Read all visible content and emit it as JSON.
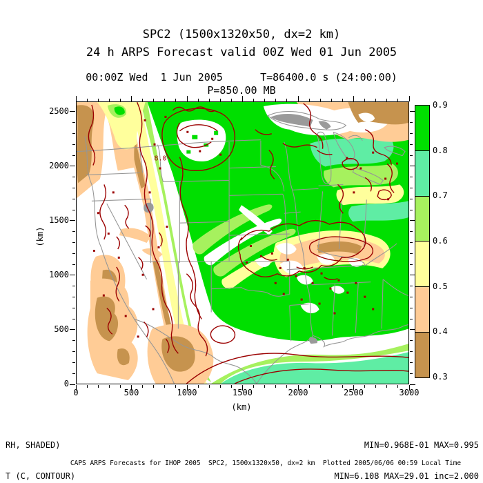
{
  "header": {
    "title1": "SPC2 (1500x1320x50, dx=2 km)",
    "title2": "24 h ARPS Forecast valid 00Z Wed 01 Jun 2005",
    "subtitle": "00:00Z Wed  1 Jun 2005      T=86400.0 s (24:00:00)",
    "pressure": "P=850.00 MB"
  },
  "axes": {
    "x": {
      "label": "(km)",
      "majors": [
        0,
        500,
        1000,
        1500,
        2000,
        2500,
        3000
      ],
      "major_step": 500,
      "minor_step": 100,
      "max": 3000
    },
    "y": {
      "label": "(km)",
      "majors": [
        0,
        500,
        1000,
        1500,
        2000,
        2500
      ],
      "major_step": 500,
      "minor_step": 100,
      "max": 2594
    }
  },
  "colorbar": {
    "labels": [
      "0.9",
      "0.8",
      "0.7",
      "0.6",
      "0.5",
      "0.4",
      "0.3"
    ],
    "colors": [
      "#00DF00",
      "#5FEDA4",
      "#A6F15E",
      "#FFFF9C",
      "#FFCC96",
      "#C6934E"
    ]
  },
  "annotations": {
    "shaded_field": "RH, SHADED)",
    "contour_field": "T (C, CONTOUR)",
    "shaded_stats": "MIN=0.968E-01 MAX=0.995",
    "contour_stats": "MIN=6.108 MAX=29.01 inc=2.000"
  },
  "footer": {
    "caption": "CAPS ARPS Forecasts for IHOP 2005  SPC2, 1500x1320x50, dx=2 km  Plotted 2005/06/06 00:59 Local Time"
  },
  "map": {
    "contour_label": "8.0",
    "contour_color": "#9B0000",
    "state_border_color": "#969696"
  },
  "chart_data": {
    "type": "heatmap",
    "title": "SPC2 (1500x1320x50, dx=2 km)",
    "subtitle": "24 h ARPS Forecast valid 00Z Wed 01 Jun 2005",
    "valid_time": "00:00Z Wed 1 Jun 2005",
    "forecast_seconds": "T=86400.0 s (24:00:00)",
    "level": "P=850.00 MB",
    "xlabel": "(km)",
    "ylabel": "(km)",
    "xlim": [
      0,
      3000
    ],
    "ylim": [
      0,
      2594
    ],
    "fields": [
      {
        "name": "RH",
        "style": "shaded",
        "min": 0.0968,
        "max": 0.995,
        "levels": [
          0.3,
          0.4,
          0.5,
          0.6,
          0.7,
          0.8,
          0.9
        ],
        "colors_low_to_high": [
          "#C6934E",
          "#FFCC96",
          "#FFFF9C",
          "#A6F15E",
          "#5FEDA4",
          "#00DF00"
        ]
      },
      {
        "name": "T (C)",
        "style": "contour",
        "min": 6.108,
        "max": 29.01,
        "inc": 2.0,
        "color": "#9B0000"
      }
    ],
    "legend_position": "right"
  }
}
